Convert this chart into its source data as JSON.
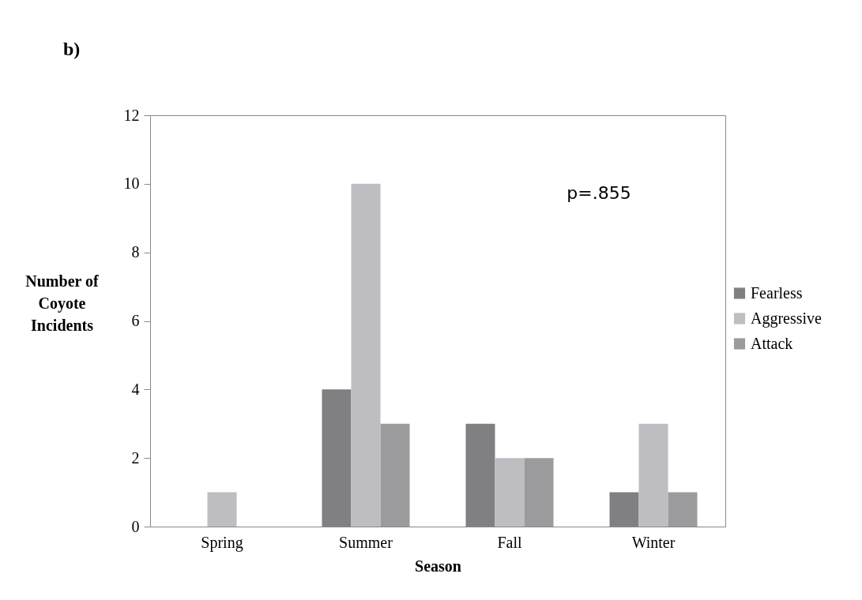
{
  "chart_data": {
    "type": "bar",
    "title": "b)",
    "xlabel": "Season",
    "ylabel": "Number of Coyote Incidents",
    "categories": [
      "Spring",
      "Summer",
      "Fall",
      "Winter"
    ],
    "series": [
      {
        "name": "Fearless",
        "color": "#808083",
        "values": [
          0,
          4,
          3,
          1
        ]
      },
      {
        "name": "Aggressive",
        "color": "#bebec2",
        "values": [
          1,
          10,
          2,
          3
        ]
      },
      {
        "name": "Attack",
        "color": "#9b9b9e",
        "values": [
          0,
          3,
          2,
          1
        ]
      }
    ],
    "ylim": [
      0,
      12
    ],
    "yticks": [
      0,
      2,
      4,
      6,
      8,
      10,
      12
    ],
    "grid": false,
    "legend": "right",
    "annotations": [
      "p=.855"
    ]
  }
}
